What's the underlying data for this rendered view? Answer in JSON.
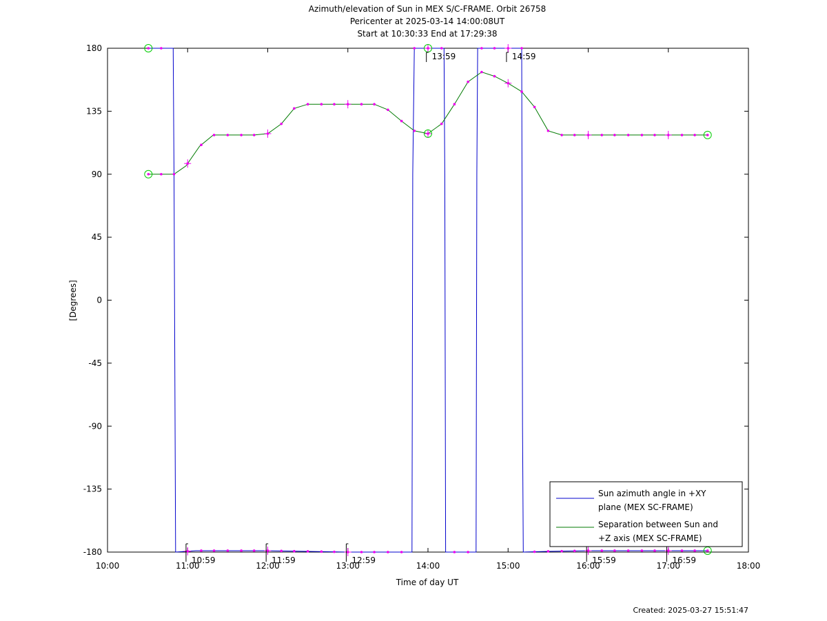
{
  "chart_data": {
    "type": "line",
    "title_lines": [
      "Azimuth/elevation of Sun in MEX S/C-FRAME.  Orbit 26758",
      "Pericenter at 2025-03-14 14:00:08UT",
      "Start at 10:30:33 End at 17:29:38"
    ],
    "xlabel": "Time of day UT",
    "ylabel": "[Degrees]",
    "xlim": [
      10.0,
      18.0
    ],
    "ylim": [
      -180,
      180
    ],
    "x_ticks": [
      {
        "v": 10,
        "label": "10:00"
      },
      {
        "v": 11,
        "label": "11:00"
      },
      {
        "v": 12,
        "label": "12:00"
      },
      {
        "v": 13,
        "label": "13:00"
      },
      {
        "v": 14,
        "label": "14:00"
      },
      {
        "v": 15,
        "label": "15:00"
      },
      {
        "v": 16,
        "label": "16:00"
      },
      {
        "v": 17,
        "label": "17:00"
      },
      {
        "v": 18,
        "label": "18:00"
      }
    ],
    "y_ticks": [
      {
        "v": 180,
        "label": "180"
      },
      {
        "v": 135,
        "label": "135"
      },
      {
        "v": 90,
        "label": "90"
      },
      {
        "v": 45,
        "label": "45"
      },
      {
        "v": 0,
        "label": "0"
      },
      {
        "v": -45,
        "label": "-45"
      },
      {
        "v": -90,
        "label": "-90"
      },
      {
        "v": -135,
        "label": "-135"
      },
      {
        "v": -180,
        "label": "-180"
      }
    ],
    "legend_position": "bottom-right",
    "series": [
      {
        "name_lines": [
          "Sun azimuth angle in +XY",
          "plane (MEX SC-FRAME)"
        ],
        "color": "#0000cc",
        "x": [
          10.51,
          10.82,
          10.83,
          10.85,
          11.1,
          11.5,
          12.0,
          12.5,
          13.0,
          13.5,
          13.8,
          13.81,
          13.83,
          14.0,
          14.2,
          14.21,
          14.22,
          14.6,
          14.61,
          14.62,
          15.0,
          15.17,
          15.18,
          15.19,
          15.5,
          16.0,
          16.5,
          17.0,
          17.49
        ],
        "y": [
          180,
          180,
          90,
          -180,
          -179,
          -179,
          -179,
          -179.5,
          -180,
          -180,
          -180,
          90,
          180,
          180,
          180,
          90,
          -180,
          -180,
          90,
          180,
          180,
          180,
          -90,
          -180,
          -179.5,
          -179,
          -179,
          -179,
          -179
        ]
      },
      {
        "name_lines": [
          "Separation between Sun and",
          "+Z axis (MEX SC-FRAME)"
        ],
        "color": "#007a00",
        "x": [
          10.51,
          10.67,
          10.83,
          10.98,
          11.15,
          11.32,
          11.5,
          11.67,
          11.83,
          12.0,
          12.17,
          12.33,
          12.5,
          12.67,
          12.83,
          13.0,
          13.17,
          13.33,
          13.5,
          13.67,
          13.83,
          14.0,
          14.17,
          14.33,
          14.5,
          14.67,
          14.83,
          15.0,
          15.17,
          15.33,
          15.5,
          15.67,
          15.83,
          16.0,
          16.17,
          16.33,
          16.5,
          16.67,
          16.83,
          17.0,
          17.17,
          17.33,
          17.49
        ],
        "y": [
          90,
          90,
          90,
          96,
          110,
          118,
          118,
          118,
          118,
          119,
          126,
          137,
          140,
          140,
          140,
          140,
          140,
          140,
          136,
          128,
          121,
          119,
          126,
          140,
          156,
          163,
          160,
          155,
          149,
          138,
          121,
          118,
          118,
          118,
          118,
          118,
          118,
          118,
          118,
          118,
          118,
          118,
          118
        ]
      }
    ],
    "samples_x": [
      10.51,
      10.67,
      10.83,
      11.0,
      11.17,
      11.33,
      11.5,
      11.67,
      11.83,
      12.0,
      12.17,
      12.33,
      12.5,
      12.67,
      12.83,
      13.0,
      13.17,
      13.33,
      13.5,
      13.67,
      13.83,
      14.0,
      14.17,
      14.33,
      14.5,
      14.67,
      14.83,
      15.0,
      15.17,
      15.33,
      15.5,
      15.67,
      15.83,
      16.0,
      16.17,
      16.33,
      16.5,
      16.67,
      16.83,
      17.0,
      17.17,
      17.33,
      17.49
    ],
    "hour_markers_x": [
      11.0,
      12.0,
      13.0,
      14.0,
      15.0,
      16.0,
      17.0
    ],
    "circle_markers": [
      {
        "x": 10.51,
        "y": 180
      },
      {
        "x": 10.51,
        "y": 90
      },
      {
        "x": 14.0,
        "y": 180
      },
      {
        "x": 14.0,
        "y": 119
      },
      {
        "x": 17.49,
        "y": 118
      },
      {
        "x": 17.49,
        "y": -179
      }
    ],
    "annotations": [
      {
        "x": 10.98,
        "y": -180,
        "text": "10:59",
        "side": "low"
      },
      {
        "x": 11.98,
        "y": -180,
        "text": "11:59",
        "side": "low"
      },
      {
        "x": 12.98,
        "y": -180,
        "text": "12:59",
        "side": "low"
      },
      {
        "x": 13.98,
        "y": 180,
        "text": "13:59",
        "side": "high"
      },
      {
        "x": 14.98,
        "y": 180,
        "text": "14:59",
        "side": "high"
      },
      {
        "x": 15.98,
        "y": -180,
        "text": "15:59",
        "side": "low"
      },
      {
        "x": 16.98,
        "y": -180,
        "text": "16:59",
        "side": "low"
      }
    ],
    "marker_color": "#ee00ee",
    "circle_color": "#00cc00"
  },
  "footer": {
    "created": "Created: 2025-03-27 15:51:47"
  }
}
